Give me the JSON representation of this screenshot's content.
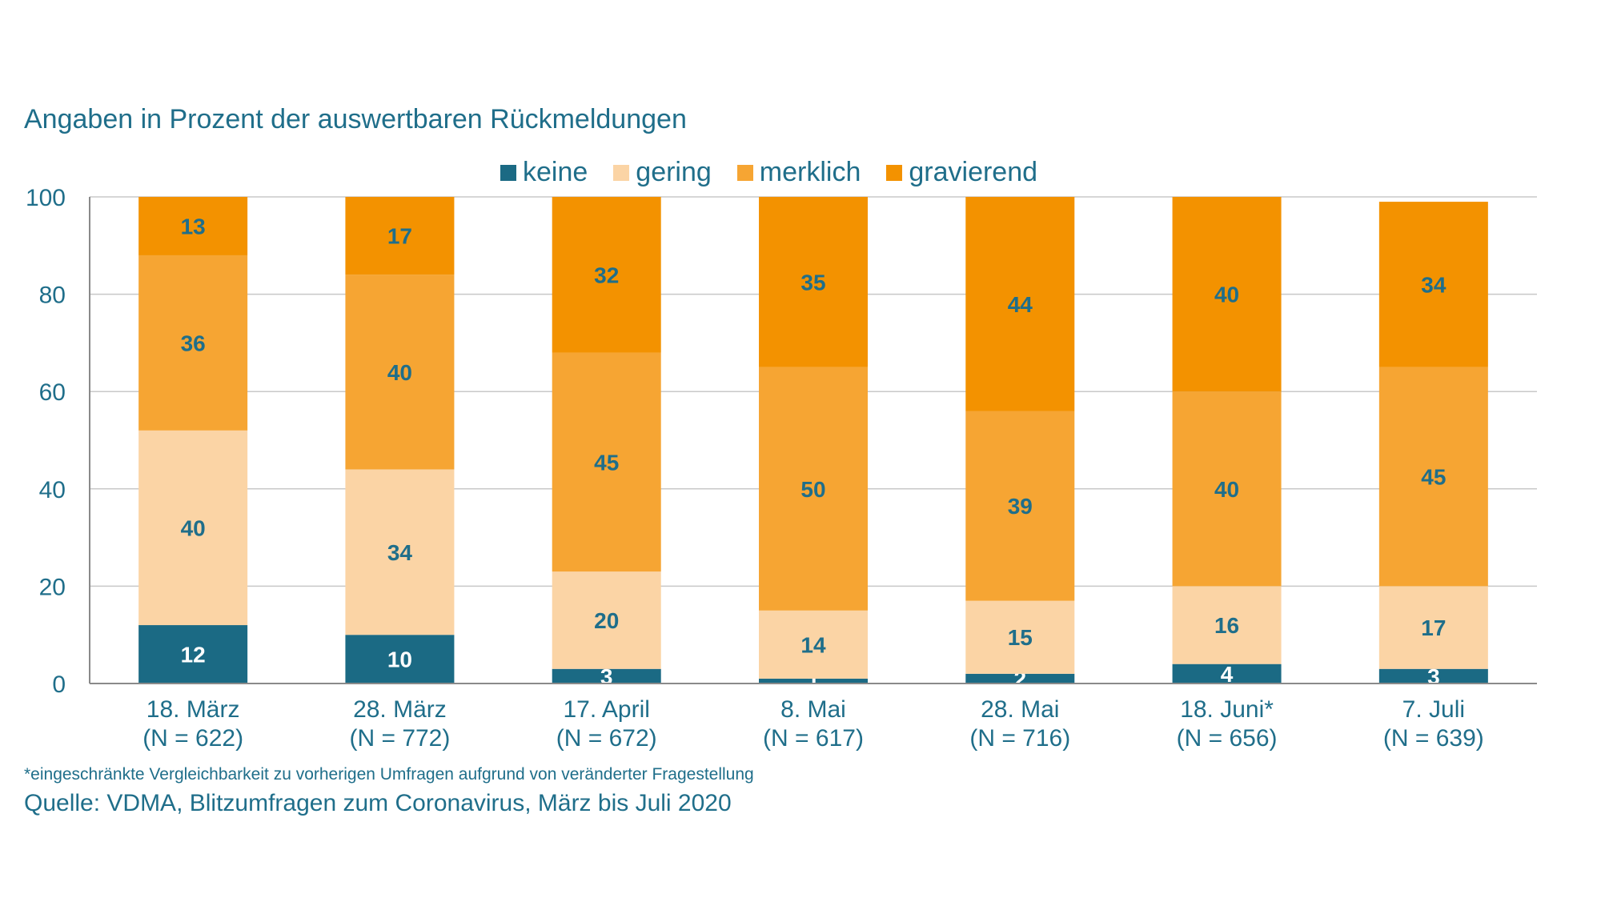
{
  "subtitle": "Angaben in Prozent der auswertbaren Rückmeldungen",
  "footnote": "*eingeschränkte Vergleichbarkeit zu vorherigen Umfragen aufgrund von veränderter Fragestellung",
  "source": "Quelle: VDMA, Blitzumfragen zum Coronavirus, März bis Juli 2020",
  "colors": {
    "keine": "#1b6a84",
    "gering": "#fbd4a5",
    "merklich": "#f6a533",
    "gravierend": "#f39200",
    "axis_text": "#1f6e8a",
    "value_text": "#1f6e8a",
    "value_text_dark": "#ffffff",
    "grid": "#c8c8c8"
  },
  "chart_data": {
    "type": "bar",
    "stacked": true,
    "title": "",
    "xlabel": "",
    "ylabel": "",
    "ylim": [
      0,
      100
    ],
    "yticks": [
      0,
      20,
      40,
      60,
      80,
      100
    ],
    "grid": true,
    "legend_position": "top",
    "categories": [
      [
        "18. März",
        "(N = 622)"
      ],
      [
        "28. März",
        "(N = 772)"
      ],
      [
        "17. April",
        "(N = 672)"
      ],
      [
        "8. Mai",
        "(N = 617)"
      ],
      [
        "28. Mai",
        "(N = 716)"
      ],
      [
        "18. Juni*",
        "(N = 656)"
      ],
      [
        "7. Juli",
        "(N = 639)"
      ]
    ],
    "series": [
      {
        "name": "keine",
        "values": [
          12,
          10,
          3,
          1,
          2,
          4,
          3
        ]
      },
      {
        "name": "gering",
        "values": [
          40,
          34,
          20,
          14,
          15,
          16,
          17
        ]
      },
      {
        "name": "merklich",
        "values": [
          36,
          40,
          45,
          50,
          39,
          40,
          45
        ]
      },
      {
        "name": "gravierend",
        "values": [
          13,
          17,
          32,
          35,
          44,
          40,
          34
        ]
      }
    ]
  }
}
